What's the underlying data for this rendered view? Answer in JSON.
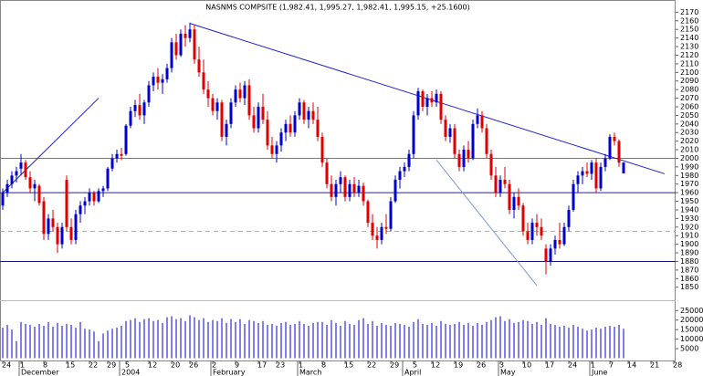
{
  "chart_data": {
    "type": "candlestick",
    "title": "NASNMS COMPSITE (1,982.41, 1,995.27, 1,982.41, 1,995.15, +25.1600)",
    "up_color": "#0000cc",
    "down_color": "#e00000",
    "ylim": [
      1838,
      2180
    ],
    "yticks": [
      2170,
      2160,
      2150,
      2140,
      2130,
      2120,
      2110,
      2100,
      2090,
      2080,
      2070,
      2060,
      2050,
      2040,
      2030,
      2020,
      2010,
      2000,
      1990,
      1980,
      1970,
      1960,
      1950,
      1940,
      1930,
      1920,
      1910,
      1900,
      1890,
      1880,
      1870,
      1860,
      1850
    ],
    "categories": [
      "24",
      null,
      null,
      null,
      "1",
      null,
      null,
      null,
      null,
      "8",
      null,
      null,
      null,
      null,
      "15",
      null,
      null,
      null,
      null,
      "22",
      null,
      null,
      null,
      "29",
      null,
      null,
      null,
      "5",
      null,
      null,
      null,
      null,
      "12",
      null,
      null,
      null,
      null,
      "20",
      null,
      null,
      null,
      "26",
      null,
      null,
      null,
      null,
      "2",
      null,
      null,
      null,
      null,
      "9",
      null,
      null,
      null,
      null,
      "17",
      null,
      null,
      null,
      "23",
      null,
      null,
      null,
      null,
      "1",
      null,
      null,
      null,
      null,
      "8",
      null,
      null,
      null,
      null,
      "15",
      null,
      null,
      null,
      null,
      "22",
      null,
      null,
      null,
      null,
      "29",
      null,
      null,
      null,
      null,
      "5",
      null,
      null,
      null,
      "12",
      null,
      null,
      null,
      null,
      "19",
      null,
      null,
      null,
      null,
      "26",
      null,
      null,
      null,
      null,
      "3",
      null,
      null,
      null,
      null,
      "10",
      null,
      null,
      null,
      null,
      "17",
      null,
      null,
      null,
      null,
      "24",
      null,
      null,
      null,
      null,
      "1",
      null,
      null,
      null,
      "7",
      null,
      null,
      null,
      "14",
      null,
      null,
      null,
      null,
      "21",
      null,
      null,
      null,
      null,
      "28"
    ],
    "months": [
      null,
      null,
      null,
      null,
      "December",
      null,
      null,
      null,
      null,
      null,
      null,
      null,
      null,
      null,
      null,
      null,
      null,
      null,
      null,
      null,
      null,
      null,
      null,
      null,
      null,
      null,
      "2004",
      null,
      null,
      null,
      null,
      null,
      null,
      null,
      null,
      null,
      null,
      null,
      null,
      null,
      null,
      null,
      null,
      null,
      null,
      null,
      "February",
      null,
      null,
      null,
      null,
      null,
      null,
      null,
      null,
      null,
      null,
      null,
      null,
      null,
      null,
      null,
      null,
      null,
      null,
      "March",
      null,
      null,
      null,
      null,
      null,
      null,
      null,
      null,
      null,
      null,
      null,
      null,
      null,
      null,
      null,
      null,
      null,
      null,
      null,
      null,
      null,
      null,
      "April",
      null,
      null,
      null,
      null,
      null,
      null,
      null,
      null,
      null,
      null,
      null,
      null,
      null,
      null,
      null,
      null,
      null,
      null,
      null,
      null,
      "May",
      null,
      null,
      null,
      null,
      null,
      null,
      null,
      null,
      null,
      null,
      null,
      null,
      null,
      null,
      null,
      null,
      null,
      null,
      null,
      "June",
      null,
      null,
      null,
      null,
      null,
      null,
      null,
      null,
      null,
      null,
      null,
      null,
      null,
      null,
      null,
      null,
      null,
      null
    ],
    "ohlc": [
      [
        1945,
        1965,
        1940,
        1960
      ],
      [
        1960,
        1975,
        1955,
        1970
      ],
      [
        1970,
        1985,
        1965,
        1980
      ],
      [
        1980,
        1990,
        1972,
        1985
      ],
      [
        1988,
        2005,
        1980,
        1995
      ],
      [
        1995,
        1998,
        1975,
        1978
      ],
      [
        1978,
        1985,
        1960,
        1965
      ],
      [
        1965,
        1975,
        1950,
        1970
      ],
      [
        1968,
        1970,
        1945,
        1948
      ],
      [
        1950,
        1955,
        1905,
        1912
      ],
      [
        1912,
        1935,
        1905,
        1930
      ],
      [
        1930,
        1940,
        1915,
        1920
      ],
      [
        1920,
        1925,
        1890,
        1900
      ],
      [
        1900,
        1925,
        1895,
        1920
      ],
      [
        1975,
        1980,
        1915,
        1920
      ],
      [
        1920,
        1930,
        1900,
        1905
      ],
      [
        1905,
        1940,
        1900,
        1935
      ],
      [
        1935,
        1950,
        1925,
        1945
      ],
      [
        1945,
        1955,
        1935,
        1950
      ],
      [
        1950,
        1965,
        1945,
        1960
      ],
      [
        1960,
        1962,
        1945,
        1950
      ],
      [
        1950,
        1965,
        1948,
        1962
      ],
      [
        1962,
        1968,
        1955,
        1965
      ],
      [
        1965,
        1990,
        1962,
        1988
      ],
      [
        1988,
        2005,
        1985,
        2000
      ],
      [
        2000,
        2010,
        1995,
        2005
      ],
      [
        2005,
        2012,
        1998,
        2003
      ],
      [
        2005,
        2040,
        2003,
        2038
      ],
      [
        2038,
        2060,
        2035,
        2055
      ],
      [
        2055,
        2068,
        2048,
        2062
      ],
      [
        2062,
        2075,
        2045,
        2050
      ],
      [
        2050,
        2068,
        2040,
        2065
      ],
      [
        2065,
        2090,
        2060,
        2085
      ],
      [
        2085,
        2100,
        2078,
        2095
      ],
      [
        2095,
        2105,
        2080,
        2088
      ],
      [
        2088,
        2098,
        2075,
        2092
      ],
      [
        2092,
        2110,
        2088,
        2105
      ],
      [
        2105,
        2140,
        2100,
        2135
      ],
      [
        2135,
        2145,
        2115,
        2120
      ],
      [
        2120,
        2150,
        2118,
        2145
      ],
      [
        2145,
        2155,
        2130,
        2140
      ],
      [
        2140,
        2158,
        2135,
        2150
      ],
      [
        2150,
        2155,
        2110,
        2115
      ],
      [
        2115,
        2130,
        2095,
        2100
      ],
      [
        2100,
        2115,
        2075,
        2080
      ],
      [
        2080,
        2090,
        2060,
        2070
      ],
      [
        2070,
        2075,
        2050,
        2055
      ],
      [
        2055,
        2070,
        2045,
        2065
      ],
      [
        2065,
        2068,
        2020,
        2025
      ],
      [
        2025,
        2045,
        2015,
        2040
      ],
      [
        2040,
        2070,
        2035,
        2065
      ],
      [
        2065,
        2085,
        2060,
        2080
      ],
      [
        2080,
        2088,
        2065,
        2070
      ],
      [
        2070,
        2090,
        2062,
        2085
      ],
      [
        2085,
        2092,
        2045,
        2050
      ],
      [
        2050,
        2060,
        2030,
        2035
      ],
      [
        2035,
        2065,
        2030,
        2060
      ],
      [
        2060,
        2075,
        2040,
        2045
      ],
      [
        2045,
        2055,
        2010,
        2015
      ],
      [
        2015,
        2025,
        2000,
        2005
      ],
      [
        2005,
        2020,
        1995,
        2015
      ],
      [
        2015,
        2035,
        2008,
        2030
      ],
      [
        2030,
        2045,
        2020,
        2040
      ],
      [
        2040,
        2050,
        2025,
        2030
      ],
      [
        2030,
        2055,
        2025,
        2050
      ],
      [
        2050,
        2070,
        2045,
        2065
      ],
      [
        2065,
        2068,
        2040,
        2045
      ],
      [
        2045,
        2060,
        2035,
        2055
      ],
      [
        2055,
        2065,
        2040,
        2045
      ],
      [
        2045,
        2060,
        2020,
        2025
      ],
      [
        2025,
        2030,
        1990,
        1995
      ],
      [
        1995,
        2000,
        1965,
        1970
      ],
      [
        1970,
        1980,
        1950,
        1955
      ],
      [
        1955,
        1975,
        1945,
        1970
      ],
      [
        1970,
        1985,
        1960,
        1978
      ],
      [
        1978,
        1980,
        1950,
        1955
      ],
      [
        1955,
        1975,
        1950,
        1970
      ],
      [
        1970,
        1978,
        1955,
        1960
      ],
      [
        1960,
        1975,
        1955,
        1968
      ],
      [
        1968,
        1972,
        1945,
        1950
      ],
      [
        1950,
        1952,
        1920,
        1925
      ],
      [
        1925,
        1935,
        1905,
        1910
      ],
      [
        1910,
        1920,
        1895,
        1905
      ],
      [
        1905,
        1925,
        1900,
        1920
      ],
      [
        1920,
        1935,
        1912,
        1918
      ],
      [
        1918,
        1955,
        1915,
        1950
      ],
      [
        1950,
        1980,
        1948,
        1975
      ],
      [
        1975,
        1990,
        1965,
        1985
      ],
      [
        1985,
        1995,
        1978,
        1990
      ],
      [
        1990,
        2010,
        1985,
        2005
      ],
      [
        2005,
        2055,
        2000,
        2050
      ],
      [
        2050,
        2082,
        2045,
        2078
      ],
      [
        2078,
        2080,
        2055,
        2060
      ],
      [
        2060,
        2075,
        2050,
        2070
      ],
      [
        2070,
        2078,
        2060,
        2065
      ],
      [
        2065,
        2080,
        2060,
        2075
      ],
      [
        2075,
        2078,
        2040,
        2045
      ],
      [
        2045,
        2050,
        2020,
        2025
      ],
      [
        2025,
        2040,
        2018,
        2035
      ],
      [
        2035,
        2040,
        2000,
        2005
      ],
      [
        2005,
        2010,
        1985,
        1990
      ],
      [
        1990,
        2015,
        1985,
        2010
      ],
      [
        2010,
        2020,
        1995,
        2000
      ],
      [
        2000,
        2045,
        1998,
        2040
      ],
      [
        2040,
        2058,
        2035,
        2050
      ],
      [
        2050,
        2055,
        2030,
        2035
      ],
      [
        2035,
        2040,
        2000,
        2005
      ],
      [
        2005,
        2010,
        1975,
        1980
      ],
      [
        1980,
        1990,
        1955,
        1960
      ],
      [
        1960,
        1980,
        1955,
        1975
      ],
      [
        1975,
        1990,
        1965,
        1970
      ],
      [
        1970,
        1975,
        1935,
        1940
      ],
      [
        1940,
        1960,
        1930,
        1955
      ],
      [
        1955,
        1965,
        1940,
        1945
      ],
      [
        1945,
        1948,
        1910,
        1915
      ],
      [
        1915,
        1925,
        1900,
        1905
      ],
      [
        1905,
        1930,
        1900,
        1925
      ],
      [
        1925,
        1935,
        1910,
        1920
      ],
      [
        1920,
        1930,
        1905,
        1910
      ],
      [
        1895,
        1900,
        1865,
        1880
      ],
      [
        1880,
        1900,
        1875,
        1895
      ],
      [
        1895,
        1910,
        1888,
        1905
      ],
      [
        1905,
        1925,
        1895,
        1900
      ],
      [
        1900,
        1925,
        1898,
        1920
      ],
      [
        1920,
        1945,
        1915,
        1940
      ],
      [
        1940,
        1975,
        1938,
        1970
      ],
      [
        1970,
        1985,
        1960,
        1980
      ],
      [
        1980,
        1990,
        1970,
        1985
      ],
      [
        1985,
        1995,
        1978,
        1982
      ],
      [
        1982,
        1998,
        1975,
        1995
      ],
      [
        1995,
        2000,
        1960,
        1965
      ],
      [
        1965,
        1995,
        1962,
        1990
      ],
      [
        1990,
        2005,
        1985,
        2000
      ],
      [
        2000,
        2028,
        1998,
        2025
      ],
      [
        2025,
        2030,
        2015,
        2020
      ],
      [
        2020,
        2022,
        1990,
        1995
      ],
      [
        1982.41,
        1995.27,
        1982.41,
        1995.15
      ],
      null,
      null,
      null,
      null,
      null,
      null,
      null,
      null,
      null,
      null,
      null
    ],
    "volume": [
      16000,
      17500,
      15000,
      9000,
      19000,
      18000,
      17500,
      16500,
      18000,
      17000,
      19000,
      16500,
      18500,
      17000,
      18000,
      17500,
      16000,
      19000,
      15500,
      15000,
      14000,
      9000,
      13000,
      14500,
      15500,
      16000,
      17000,
      19500,
      20000,
      21000,
      19000,
      20500,
      21000,
      19500,
      20000,
      18500,
      21500,
      22000,
      20500,
      21000,
      19500,
      22500,
      21500,
      20000,
      21000,
      19000,
      20000,
      19500,
      21000,
      18500,
      20500,
      19000,
      20500,
      18000,
      20000,
      19500,
      18500,
      19500,
      17500,
      18000,
      17000,
      18500,
      19000,
      17500,
      18000,
      19500,
      18000,
      17000,
      18500,
      19000,
      19000,
      17500,
      20000,
      18500,
      17000,
      19500,
      18000,
      17500,
      20000,
      21000,
      18000,
      19500,
      17000,
      18500,
      17500,
      17000,
      18500,
      18000,
      17500,
      16500,
      19000,
      20500,
      18000,
      17500,
      18500,
      17000,
      19500,
      18000,
      17500,
      18000,
      19000,
      17500,
      18500,
      17000,
      18500,
      17500,
      19000,
      20000,
      21500,
      22000,
      19500,
      20500,
      18500,
      19000,
      20000,
      19500,
      18000,
      19000,
      17500,
      21000,
      18000,
      17500,
      16500,
      17000,
      16000,
      17500,
      16500,
      15500,
      14500,
      15000,
      16000,
      15500,
      16500,
      17000,
      16500,
      17500,
      15500,
      null,
      null,
      null,
      null,
      null,
      null,
      null,
      null,
      null,
      null,
      null
    ],
    "volume_color": "#0000cc",
    "volume_lim": [
      0,
      28000
    ],
    "volume_ticks": [
      25000,
      20000,
      15000,
      10000,
      5000
    ],
    "levels": [
      {
        "value": 2000,
        "color": "#3a9a6a",
        "dashed": false
      },
      {
        "value": 1960,
        "color": "#2222aa",
        "dashed": false
      },
      {
        "value": 1915,
        "color": "#e8a060",
        "dashed": true
      },
      {
        "value": 1880,
        "color": "#1a1a6a",
        "dashed": false
      }
    ],
    "trendlines": [
      {
        "from": [
          0,
          1960
        ],
        "to": [
          21,
          2070
        ],
        "color": "#2222cc"
      },
      {
        "from": [
          41,
          2157
        ],
        "to": [
          145,
          1982
        ],
        "color": "#2222cc"
      },
      {
        "from": [
          95,
          1998
        ],
        "to": [
          117,
          1852
        ],
        "color": "#7f9ad6"
      }
    ]
  }
}
